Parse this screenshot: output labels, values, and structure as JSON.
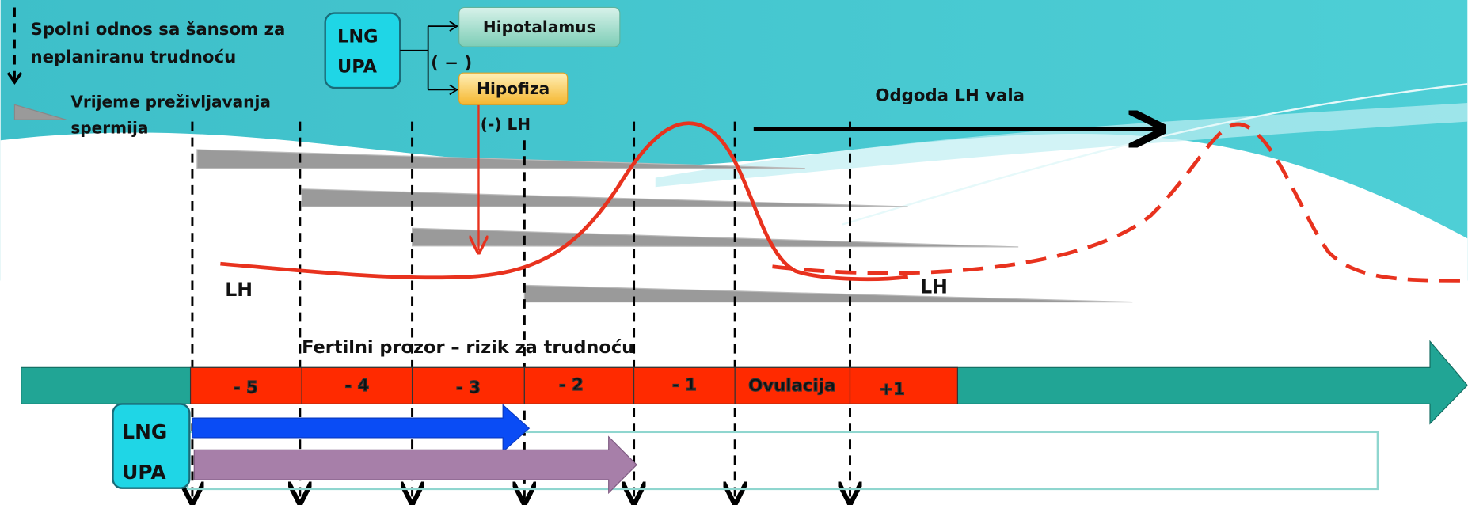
{
  "legend": {
    "intercourse": [
      "Spolni odnos sa  šansom za",
      "neplaniranu trudnoću"
    ],
    "sperm": [
      "Vrijeme preživljavanja",
      "spermija"
    ]
  },
  "mechanism": {
    "drugs": [
      "LNG",
      "UPA"
    ],
    "inhibition": "( − )",
    "targets": [
      "Hipotalamus",
      "Hipofiza"
    ],
    "lh_effect": "(-) LH"
  },
  "delay_label": "Odgoda LH vala",
  "lh_labels": [
    "LH",
    "LH"
  ],
  "fertile_window": "Fertilni prozor – rizik za trudnoću",
  "days": [
    "- 5",
    "- 4",
    "- 3",
    "- 2",
    "- 1",
    "Ovulacija",
    "+1"
  ],
  "window_drugs": [
    "LNG",
    "UPA"
  ]
}
